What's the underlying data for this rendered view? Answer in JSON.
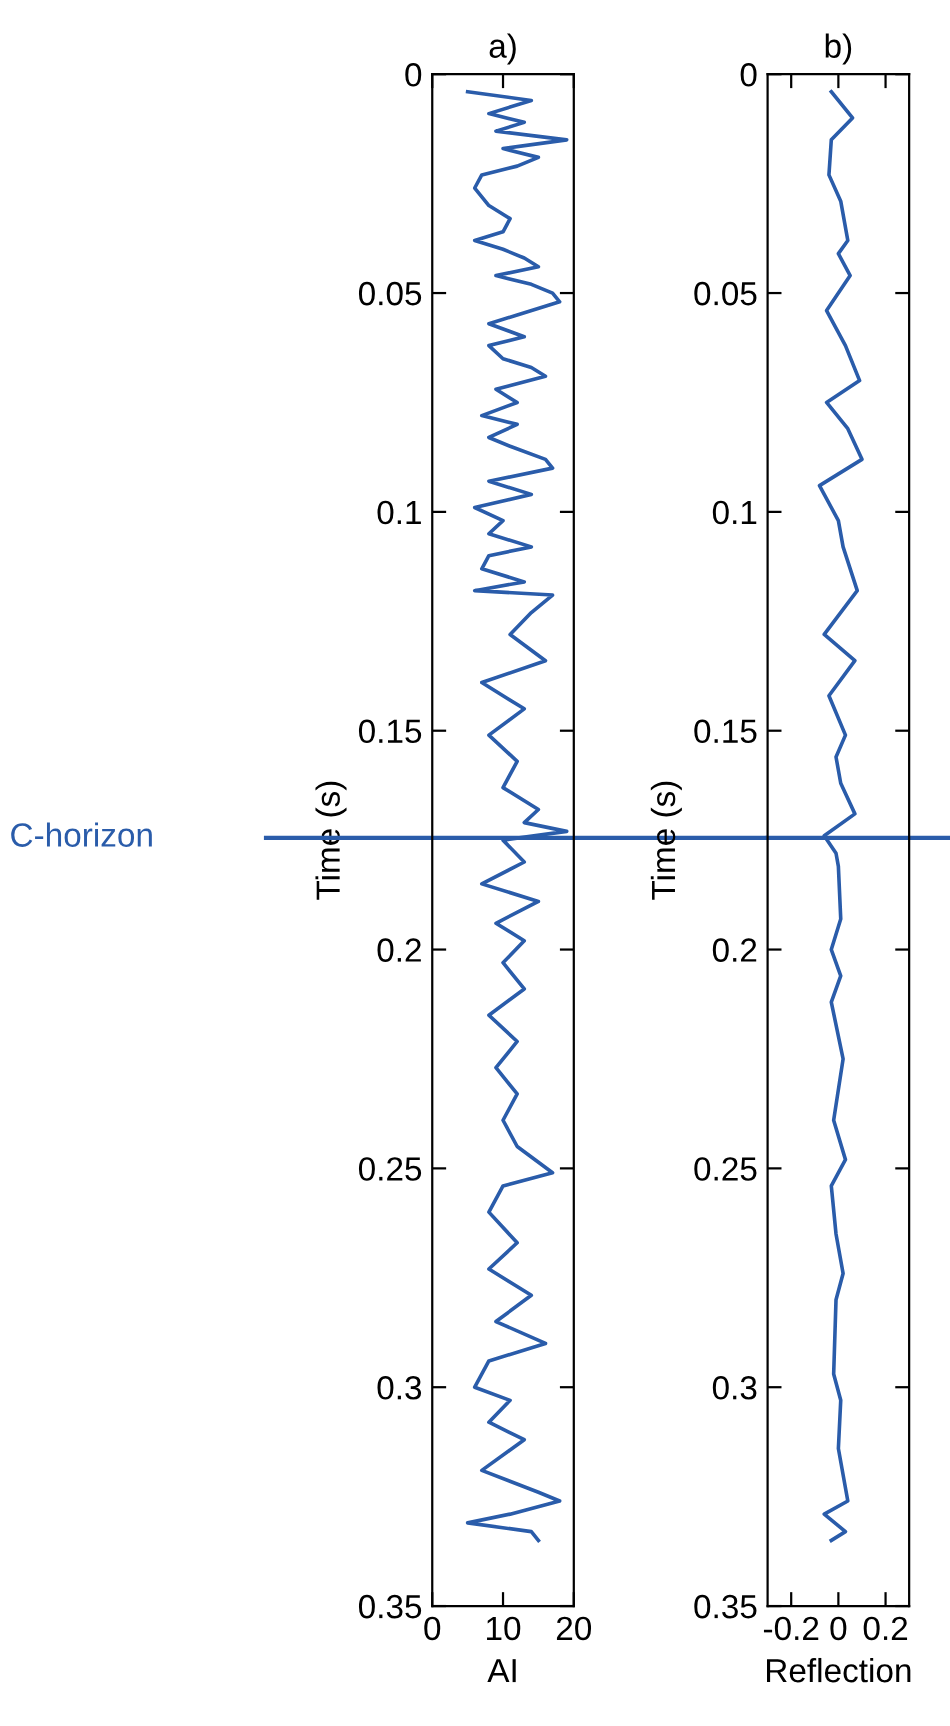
{
  "chart_data": [
    {
      "type": "line",
      "title": "a)",
      "xlabel": "AI",
      "ylabel": "Time (s)",
      "xlim": [
        0,
        20
      ],
      "xticks": [
        0,
        10,
        20
      ],
      "ylim": [
        0.35,
        0
      ],
      "yticks": [
        0,
        0.05,
        0.1,
        0.15,
        0.2,
        0.25,
        0.3,
        0.35
      ],
      "marker": "none",
      "line_style": "solid",
      "ref_lines": [
        {
          "axis": "y",
          "value": 0.1745,
          "label": "C-horizon",
          "color": "#2a5caa"
        }
      ],
      "series": [
        {
          "color": "#2a5caa",
          "x": [
            5,
            14,
            8,
            13,
            9,
            19,
            10,
            15,
            12,
            7,
            6,
            8,
            11,
            10,
            6,
            10,
            13,
            15,
            9,
            14,
            17,
            18,
            12,
            8,
            13,
            8,
            10,
            14,
            16,
            9,
            12,
            7,
            12,
            8,
            11,
            16,
            17,
            8,
            14,
            6,
            10,
            8,
            14,
            8,
            7,
            13,
            6,
            17,
            14,
            11,
            16,
            7,
            13,
            8,
            12,
            10,
            15,
            13,
            19,
            10,
            13,
            7,
            15,
            9,
            13,
            10,
            13,
            8,
            12,
            9,
            12,
            10,
            12,
            17,
            10,
            8,
            12,
            8,
            14,
            9,
            16,
            8,
            6,
            11,
            8,
            13,
            7,
            15,
            18,
            11,
            5,
            14,
            15
          ],
          "values": [
            0.004,
            0.006,
            0.009,
            0.011,
            0.013,
            0.015,
            0.017,
            0.019,
            0.021,
            0.023,
            0.026,
            0.03,
            0.033,
            0.036,
            0.038,
            0.04,
            0.042,
            0.044,
            0.046,
            0.048,
            0.05,
            0.052,
            0.055,
            0.057,
            0.06,
            0.062,
            0.065,
            0.067,
            0.069,
            0.072,
            0.075,
            0.078,
            0.08,
            0.083,
            0.085,
            0.088,
            0.09,
            0.093,
            0.096,
            0.099,
            0.102,
            0.105,
            0.108,
            0.11,
            0.113,
            0.116,
            0.118,
            0.119,
            0.123,
            0.128,
            0.134,
            0.139,
            0.145,
            0.151,
            0.157,
            0.163,
            0.168,
            0.171,
            0.173,
            0.175,
            0.18,
            0.185,
            0.189,
            0.194,
            0.198,
            0.203,
            0.209,
            0.215,
            0.221,
            0.227,
            0.233,
            0.239,
            0.245,
            0.251,
            0.254,
            0.26,
            0.267,
            0.273,
            0.279,
            0.285,
            0.29,
            0.294,
            0.3,
            0.303,
            0.308,
            0.312,
            0.319,
            0.324,
            0.326,
            0.329,
            0.331,
            0.333,
            0.335
          ]
        }
      ]
    },
    {
      "type": "line",
      "title": "b)",
      "xlabel": "Reflection",
      "ylabel": "Time (s)",
      "xlim": [
        -0.3,
        0.3
      ],
      "xticks": [
        -0.2,
        0,
        0.2
      ],
      "ylim": [
        0.35,
        0
      ],
      "yticks": [
        0,
        0.05,
        0.1,
        0.15,
        0.2,
        0.25,
        0.3,
        0.35
      ],
      "marker": "none",
      "line_style": "solid",
      "ref_lines": [
        {
          "axis": "y",
          "value": 0.1745,
          "color": "#2a5caa"
        }
      ],
      "series": [
        {
          "color": "#2a5caa",
          "x": [
            -0.03,
            0.06,
            -0.03,
            -0.04,
            0.01,
            0.04,
            0,
            0.05,
            -0.05,
            0.03,
            0.09,
            -0.05,
            0.04,
            0.1,
            -0.08,
            0,
            0.02,
            0.08,
            -0.06,
            0.07,
            -0.04,
            0.03,
            -0.01,
            0.01,
            0.07,
            -0.06,
            -0.01,
            0,
            0.01,
            -0.03,
            0.01,
            -0.03,
            0.02,
            -0.02,
            0.03,
            -0.03,
            -0.01,
            0.02,
            -0.01,
            -0.02,
            0.01,
            0,
            0.04,
            -0.06,
            0.03,
            -0.03
          ],
          "values": [
            0.004,
            0.01,
            0.015,
            0.023,
            0.029,
            0.038,
            0.041,
            0.046,
            0.054,
            0.062,
            0.07,
            0.075,
            0.081,
            0.088,
            0.094,
            0.102,
            0.108,
            0.118,
            0.128,
            0.134,
            0.142,
            0.151,
            0.156,
            0.162,
            0.169,
            0.174,
            0.178,
            0.181,
            0.193,
            0.2,
            0.206,
            0.212,
            0.225,
            0.239,
            0.248,
            0.254,
            0.265,
            0.274,
            0.28,
            0.297,
            0.303,
            0.314,
            0.326,
            0.329,
            0.333,
            0.335
          ]
        }
      ]
    }
  ]
}
